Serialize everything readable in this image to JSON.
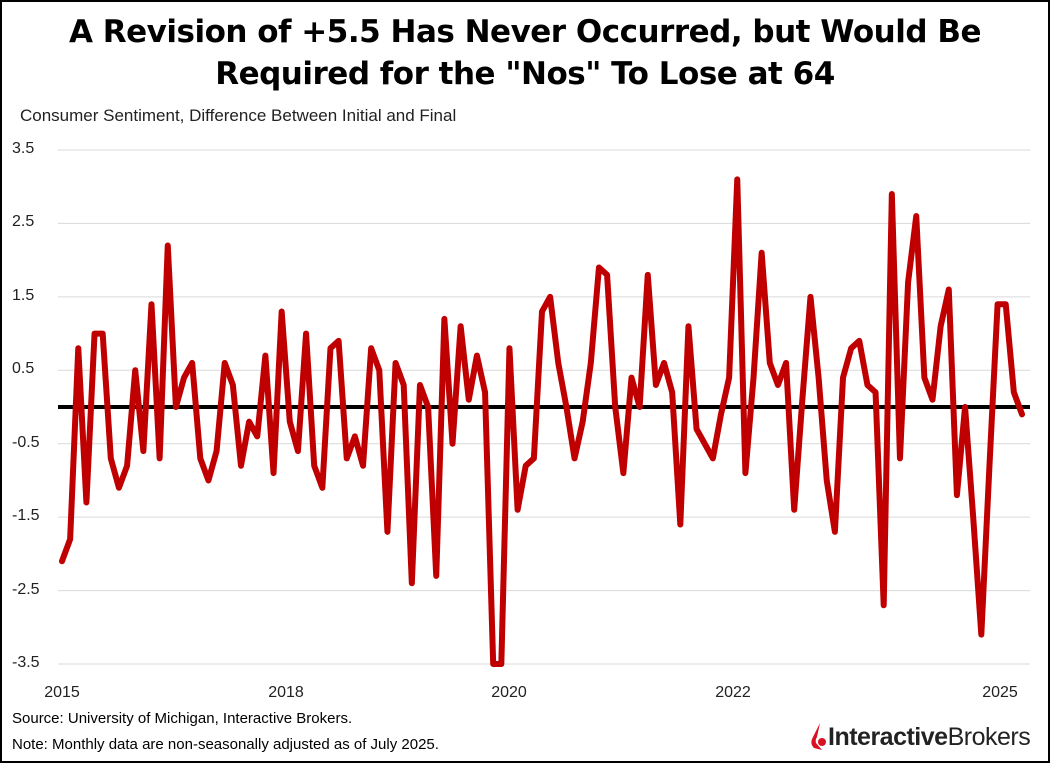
{
  "chart_data": {
    "type": "line",
    "title_line1": "A Revision of +5.5 Has Never Occurred, but Would Be",
    "title_line2": "Required for the \"Nos\" To Lose at 64",
    "subtitle": "Consumer Sentiment, Difference Between Initial and Final",
    "ylim": [
      -3.5,
      3.5
    ],
    "y_ticks": [
      "3.5",
      "2.5",
      "1.5",
      "0.5",
      "-0.5",
      "-1.5",
      "-2.5",
      "-3.5"
    ],
    "x_ticks": [
      "2015",
      "2018",
      "2020",
      "2022",
      "2025"
    ],
    "grid": true,
    "zero_line": true,
    "series_color": "#C00000",
    "zero_line_color": "#000000",
    "frequency": "monthly",
    "values": [
      -2.1,
      -1.8,
      0.8,
      -1.3,
      1.0,
      1.0,
      -0.7,
      -1.1,
      -0.8,
      0.5,
      -0.6,
      1.4,
      -0.7,
      2.2,
      0.0,
      0.4,
      0.6,
      -0.7,
      -1.0,
      -0.6,
      0.6,
      0.3,
      -0.8,
      -0.2,
      -0.4,
      0.7,
      -0.9,
      1.3,
      -0.2,
      -0.6,
      1.0,
      -0.8,
      -1.1,
      0.8,
      0.9,
      -0.7,
      -0.4,
      -0.8,
      0.8,
      0.5,
      -1.7,
      0.6,
      0.3,
      -2.4,
      0.3,
      0.0,
      -2.3,
      1.2,
      -0.5,
      1.1,
      0.1,
      0.7,
      0.2,
      -3.5,
      -3.5,
      0.8,
      -1.4,
      -0.8,
      -0.7,
      1.3,
      1.5,
      0.6,
      0.0,
      -0.7,
      -0.2,
      0.6,
      1.9,
      1.8,
      0.0,
      -0.9,
      0.4,
      0.0,
      1.8,
      0.3,
      0.6,
      0.2,
      -1.6,
      1.1,
      -0.3,
      -0.5,
      -0.7,
      -0.1,
      0.4,
      3.1,
      -0.9,
      0.4,
      2.1,
      0.6,
      0.3,
      0.6,
      -1.4,
      0.1,
      1.5,
      0.4,
      -1.0,
      -1.7,
      0.4,
      0.8,
      0.9,
      0.3,
      0.2,
      -2.7,
      2.9,
      -0.7,
      1.7,
      2.6,
      0.4,
      0.1,
      1.1,
      1.6,
      -1.2,
      0.0,
      -1.5,
      -3.1,
      -0.8,
      1.4,
      1.4,
      0.2,
      -0.1
    ]
  },
  "footer": {
    "source": "Source: University of Michigan, Interactive Brokers.",
    "note": "Note: Monthly data are non-seasonally adjusted as of July 2025."
  },
  "logo": {
    "text_bold": "Interactive",
    "text_regular": "Brokers",
    "color": "#D81222"
  }
}
